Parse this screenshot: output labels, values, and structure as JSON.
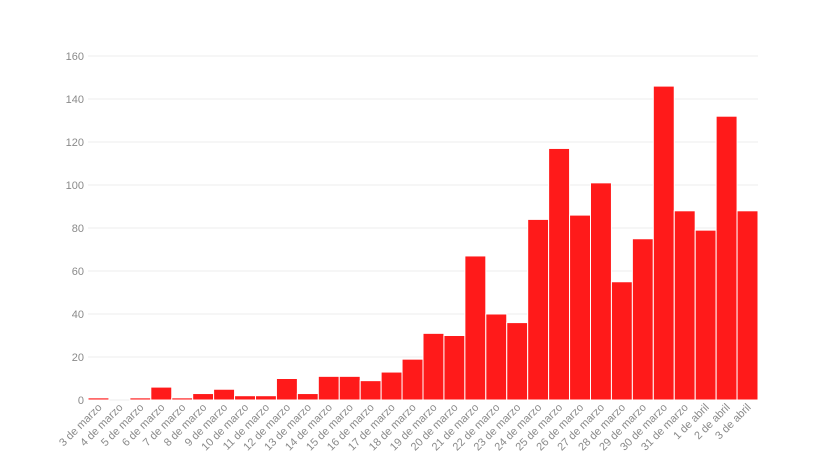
{
  "chart_data": {
    "type": "bar",
    "title": "",
    "xlabel": "",
    "ylabel": "",
    "ylim": [
      0,
      160
    ],
    "yticks": [
      0,
      20,
      40,
      60,
      80,
      100,
      120,
      140,
      160
    ],
    "grid": true,
    "bar_color": "#ff1a1a",
    "categories": [
      "3 de marzo",
      "4 de marzo",
      "5 de marzo",
      "6 de marzo",
      "7 de marzo",
      "8 de marzo",
      "9 de marzo",
      "10 de marzo",
      "11 de marzo",
      "12 de marzo",
      "13 de marzo",
      "14 de marzo",
      "15 de marzo",
      "16 de marzo",
      "17 de marzo",
      "18 de marzo",
      "19 de marzo",
      "20 de marzo",
      "21 de marzo",
      "22 de marzo",
      "23 de marzo",
      "24 de marzo",
      "25 de marzo",
      "26 de marzo",
      "27 de marzo",
      "28 de marzo",
      "29 de marzo",
      "30 de marzo",
      "31 de marzo",
      "1 de abril",
      "2 de abril",
      "3 de abril"
    ],
    "values": [
      1,
      0,
      1,
      6,
      1,
      3,
      5,
      2,
      2,
      10,
      3,
      11,
      11,
      9,
      13,
      19,
      31,
      30,
      67,
      40,
      36,
      84,
      117,
      86,
      101,
      55,
      75,
      146,
      88,
      79,
      132,
      88
    ]
  }
}
